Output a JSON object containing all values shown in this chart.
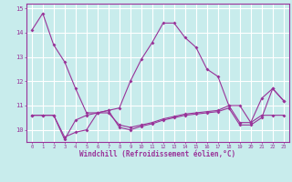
{
  "xlabel": "Windchill (Refroidissement éolien,°C)",
  "bg_color": "#c8ecec",
  "grid_color": "#ffffff",
  "line_color": "#993399",
  "x": [
    0,
    1,
    2,
    3,
    4,
    5,
    6,
    7,
    8,
    9,
    10,
    11,
    12,
    13,
    14,
    15,
    16,
    17,
    18,
    19,
    20,
    21,
    22,
    23
  ],
  "line1": [
    14.1,
    14.8,
    13.5,
    12.8,
    11.7,
    10.7,
    10.7,
    10.8,
    10.9,
    12.0,
    12.9,
    13.6,
    14.4,
    14.4,
    13.8,
    13.4,
    12.5,
    12.2,
    11.0,
    11.0,
    10.3,
    11.3,
    11.7,
    11.2
  ],
  "line2": [
    10.6,
    10.6,
    10.6,
    9.6,
    10.4,
    10.6,
    10.7,
    10.7,
    10.2,
    10.1,
    10.2,
    10.3,
    10.45,
    10.55,
    10.65,
    10.7,
    10.75,
    10.8,
    11.0,
    10.3,
    10.3,
    10.6,
    10.6,
    10.6
  ],
  "line3": [
    10.6,
    10.6,
    10.6,
    9.7,
    9.9,
    10.0,
    10.7,
    10.8,
    10.1,
    10.0,
    10.15,
    10.25,
    10.4,
    10.5,
    10.6,
    10.65,
    10.7,
    10.75,
    10.9,
    10.2,
    10.2,
    10.5,
    11.7,
    11.2
  ],
  "ylim": [
    9.5,
    15.2
  ],
  "yticks": [
    10,
    11,
    12,
    13,
    14,
    15
  ],
  "xticks": [
    0,
    1,
    2,
    3,
    4,
    5,
    6,
    7,
    8,
    9,
    10,
    11,
    12,
    13,
    14,
    15,
    16,
    17,
    18,
    19,
    20,
    21,
    22,
    23
  ],
  "markersize": 2.0,
  "linewidth": 0.8
}
